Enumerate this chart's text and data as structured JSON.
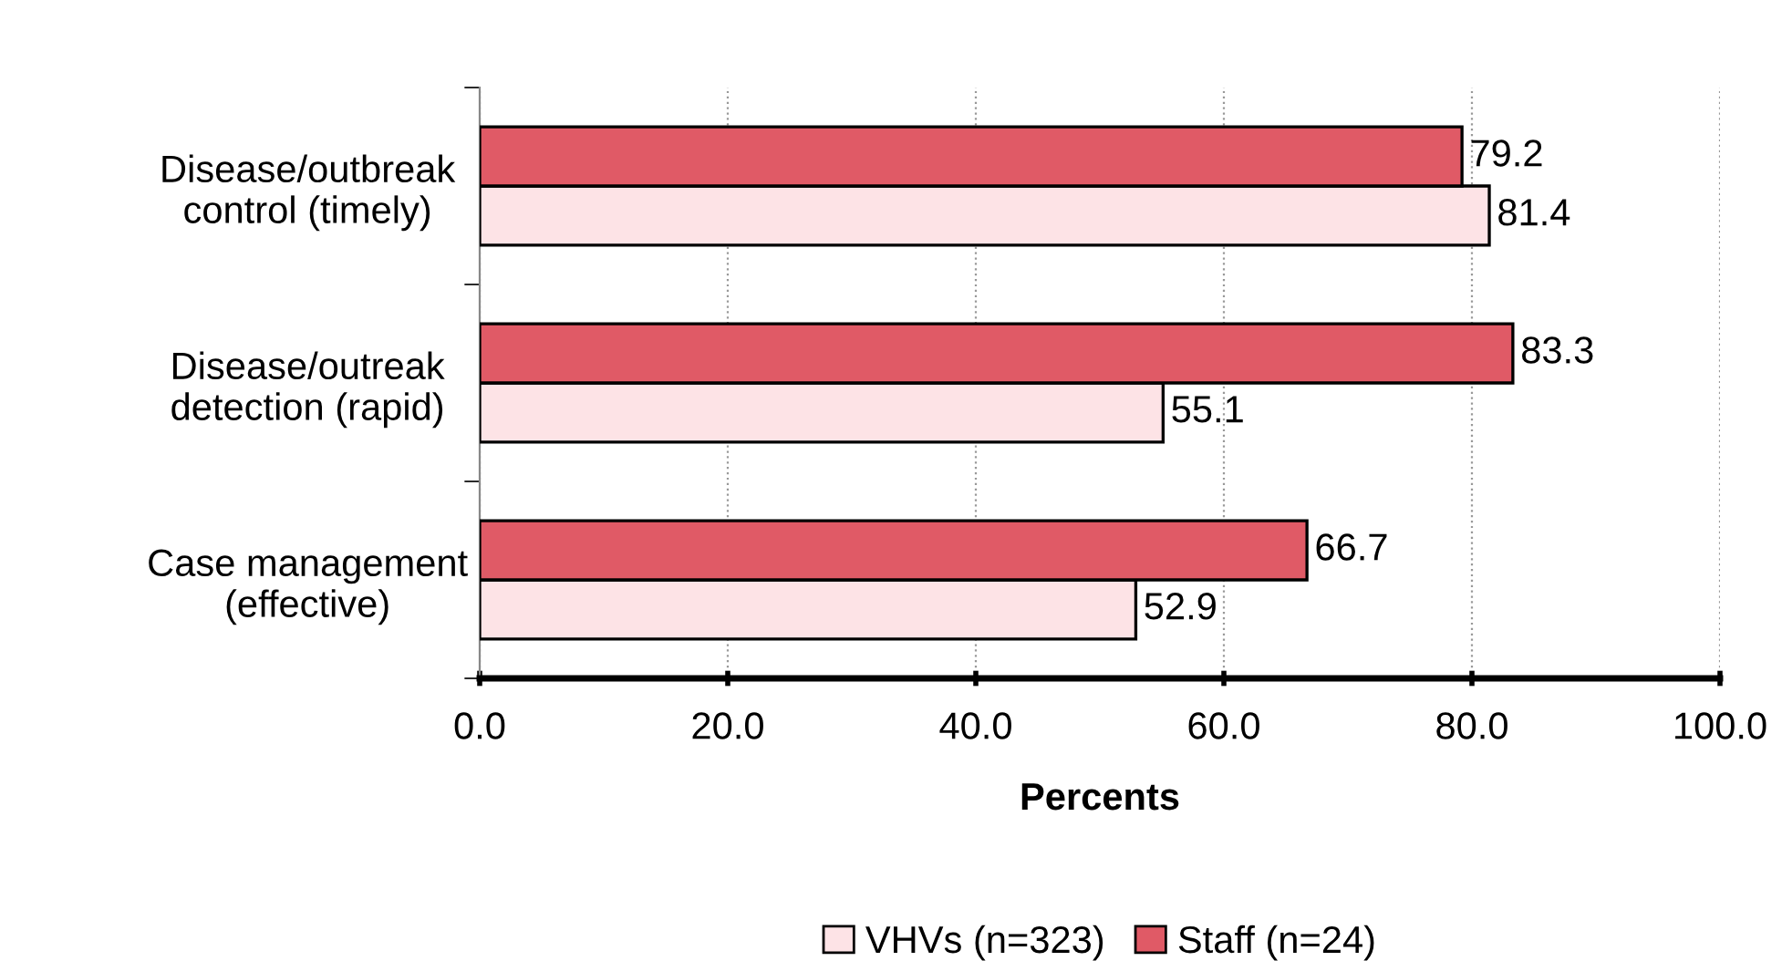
{
  "chart_data": {
    "type": "bar",
    "orientation": "horizontal",
    "xlabel": "Percents",
    "categories": [
      "Disease/outbreak\ncontrol (timely)",
      "Disease/outreak\ndetection (rapid)",
      "Case management\n(effective)"
    ],
    "series": [
      {
        "name": "VHVs (n=323)",
        "color": "#fde3e6",
        "values": [
          81.4,
          55.1,
          52.9
        ]
      },
      {
        "name": "Staff (n=24)",
        "color": "#e05a66",
        "values": [
          79.2,
          83.3,
          66.7
        ]
      }
    ],
    "xlim": [
      0,
      100
    ],
    "xticks": [
      {
        "value": 0,
        "label": "0.0"
      },
      {
        "value": 20,
        "label": "20.0"
      },
      {
        "value": 40,
        "label": "40.0"
      },
      {
        "value": 60,
        "label": "60.0"
      },
      {
        "value": 80,
        "label": "80.0"
      },
      {
        "value": 100,
        "label": "100.0"
      }
    ],
    "grid": "x",
    "legend": "bottom",
    "data_labels": true
  }
}
